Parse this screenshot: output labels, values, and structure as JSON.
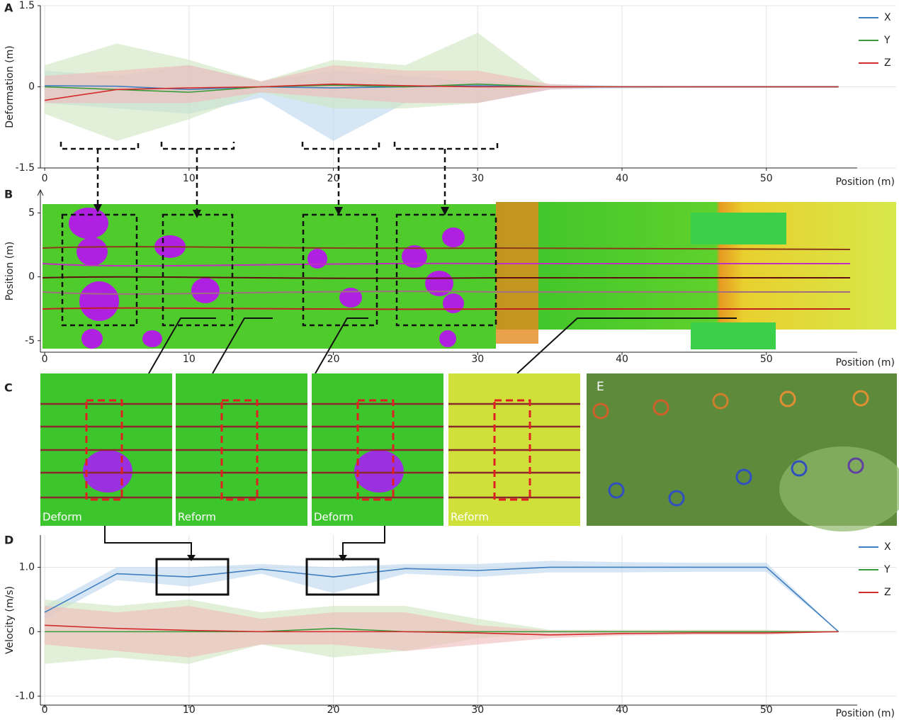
{
  "chart_data": [
    {
      "type": "line",
      "panel": "A",
      "ylabel": "Deformation (m)",
      "xlabel": "Position (m)",
      "xlim": [
        -0.3,
        56
      ],
      "xticks": [
        0,
        10,
        20,
        30,
        40,
        50
      ],
      "ylim": [
        -1.5,
        1.5
      ],
      "yticks": [
        -1.5,
        0,
        1.5
      ],
      "grid": true,
      "legend": "top-right",
      "x": [
        0,
        5,
        10,
        15,
        20,
        25,
        30,
        35,
        40,
        45,
        50,
        55
      ],
      "series": [
        {
          "name": "X",
          "color": "#3f7fbf",
          "band_color": "#bcd6ef",
          "values": [
            0.02,
            0.01,
            -0.05,
            0,
            -0.02,
            0,
            0.02,
            0,
            0,
            0,
            0,
            0
          ],
          "lower": [
            -0.3,
            -0.4,
            -0.5,
            -0.2,
            -1.0,
            -0.3,
            -0.3,
            -0.05,
            -0.03,
            -0.02,
            -0.02,
            -0.02
          ],
          "upper": [
            0.3,
            0.2,
            0.4,
            0.1,
            0.3,
            0.2,
            0.1,
            0.05,
            0.02,
            0.02,
            0.02,
            0.02
          ]
        },
        {
          "name": "Y",
          "color": "#3a9a3a",
          "band_color": "#cfe6c2",
          "values": [
            0,
            -0.05,
            -0.1,
            0,
            0.03,
            0,
            0.05,
            0,
            0,
            0,
            0,
            0
          ],
          "lower": [
            -0.5,
            -1.0,
            -0.6,
            -0.1,
            -0.4,
            -0.4,
            -0.3,
            0,
            0,
            0,
            0,
            0
          ],
          "upper": [
            0.4,
            0.8,
            0.5,
            0.1,
            0.5,
            0.4,
            1.0,
            0,
            0,
            0,
            0,
            0
          ]
        },
        {
          "name": "Z",
          "color": "#d22b2b",
          "band_color": "#f0b9b9",
          "values": [
            -0.25,
            -0.05,
            -0.02,
            0,
            0.05,
            0.02,
            0,
            0,
            0,
            0,
            0,
            0
          ],
          "lower": [
            -0.3,
            -0.3,
            -0.3,
            -0.1,
            -0.2,
            -0.3,
            -0.3,
            -0.05,
            0,
            0,
            0,
            0
          ],
          "upper": [
            0.2,
            0.3,
            0.4,
            0.1,
            0.4,
            0.3,
            0.3,
            0.05,
            0,
            0,
            0,
            0
          ]
        }
      ]
    },
    {
      "type": "map",
      "panel": "B",
      "ylabel": "Position (m)",
      "xlabel": "Position (m)",
      "xlim": [
        -0.3,
        56
      ],
      "xticks": [
        0,
        10,
        20,
        30,
        40,
        50
      ],
      "ylim": [
        -5.9,
        6.8
      ],
      "yticks": [
        -5,
        0,
        5
      ],
      "grid": false
    },
    {
      "type": "line",
      "panel": "D",
      "ylabel": "Velocity (m/s)",
      "xlabel": "Position (m)",
      "xlim": [
        -0.3,
        56
      ],
      "xticks": [
        0,
        10,
        20,
        30,
        40,
        50
      ],
      "ylim": [
        -1.14,
        1.5
      ],
      "yticks": [
        {
          "value": -1,
          "label": "-1.0"
        },
        0,
        {
          "value": 1,
          "label": "1.0"
        }
      ],
      "grid": true,
      "legend": "top-right",
      "x": [
        0,
        5,
        10,
        15,
        20,
        25,
        30,
        35,
        40,
        45,
        50,
        55
      ],
      "series": [
        {
          "name": "X",
          "color": "#3f7fbf",
          "band_color": "#bcd6ef",
          "values": [
            0.3,
            0.9,
            0.85,
            0.97,
            0.85,
            0.98,
            0.95,
            1.0,
            1.0,
            1.0,
            1.0,
            0
          ],
          "lower": [
            0.2,
            0.8,
            0.7,
            0.9,
            0.6,
            0.9,
            0.85,
            0.92,
            0.92,
            0.93,
            0.93,
            0
          ],
          "upper": [
            0.4,
            1.0,
            1.0,
            1.05,
            1.0,
            1.05,
            1.05,
            1.1,
            1.08,
            1.07,
            1.07,
            0
          ]
        },
        {
          "name": "Y",
          "color": "#3a9a3a",
          "band_color": "#cfe6c2",
          "values": [
            0,
            0,
            0,
            0,
            0.05,
            0,
            0,
            0,
            0,
            0,
            0,
            0
          ],
          "lower": [
            -0.5,
            -0.4,
            -0.5,
            -0.2,
            -0.4,
            -0.3,
            -0.1,
            -0.03,
            -0.03,
            -0.03,
            -0.03,
            0
          ],
          "upper": [
            0.5,
            0.4,
            0.5,
            0.3,
            0.4,
            0.4,
            0.2,
            0.03,
            0.03,
            0.03,
            0.03,
            0
          ]
        },
        {
          "name": "Z",
          "color": "#d22b2b",
          "band_color": "#f0b9b9",
          "values": [
            0.1,
            0.05,
            0.02,
            0,
            0,
            0,
            -0.02,
            -0.05,
            -0.03,
            -0.02,
            -0.02,
            0
          ],
          "lower": [
            -0.2,
            -0.3,
            -0.4,
            -0.2,
            -0.2,
            -0.3,
            -0.2,
            -0.1,
            -0.06,
            -0.05,
            -0.05,
            0
          ],
          "upper": [
            0.4,
            0.3,
            0.4,
            0.2,
            0.3,
            0.3,
            0.1,
            0.02,
            0.02,
            0.02,
            0.02,
            0
          ]
        }
      ]
    }
  ],
  "panel_c": {
    "label": "C",
    "tiles": [
      "Deform",
      "Reform",
      "Deform",
      "Reform"
    ]
  },
  "panel_e": {
    "label": "E"
  }
}
